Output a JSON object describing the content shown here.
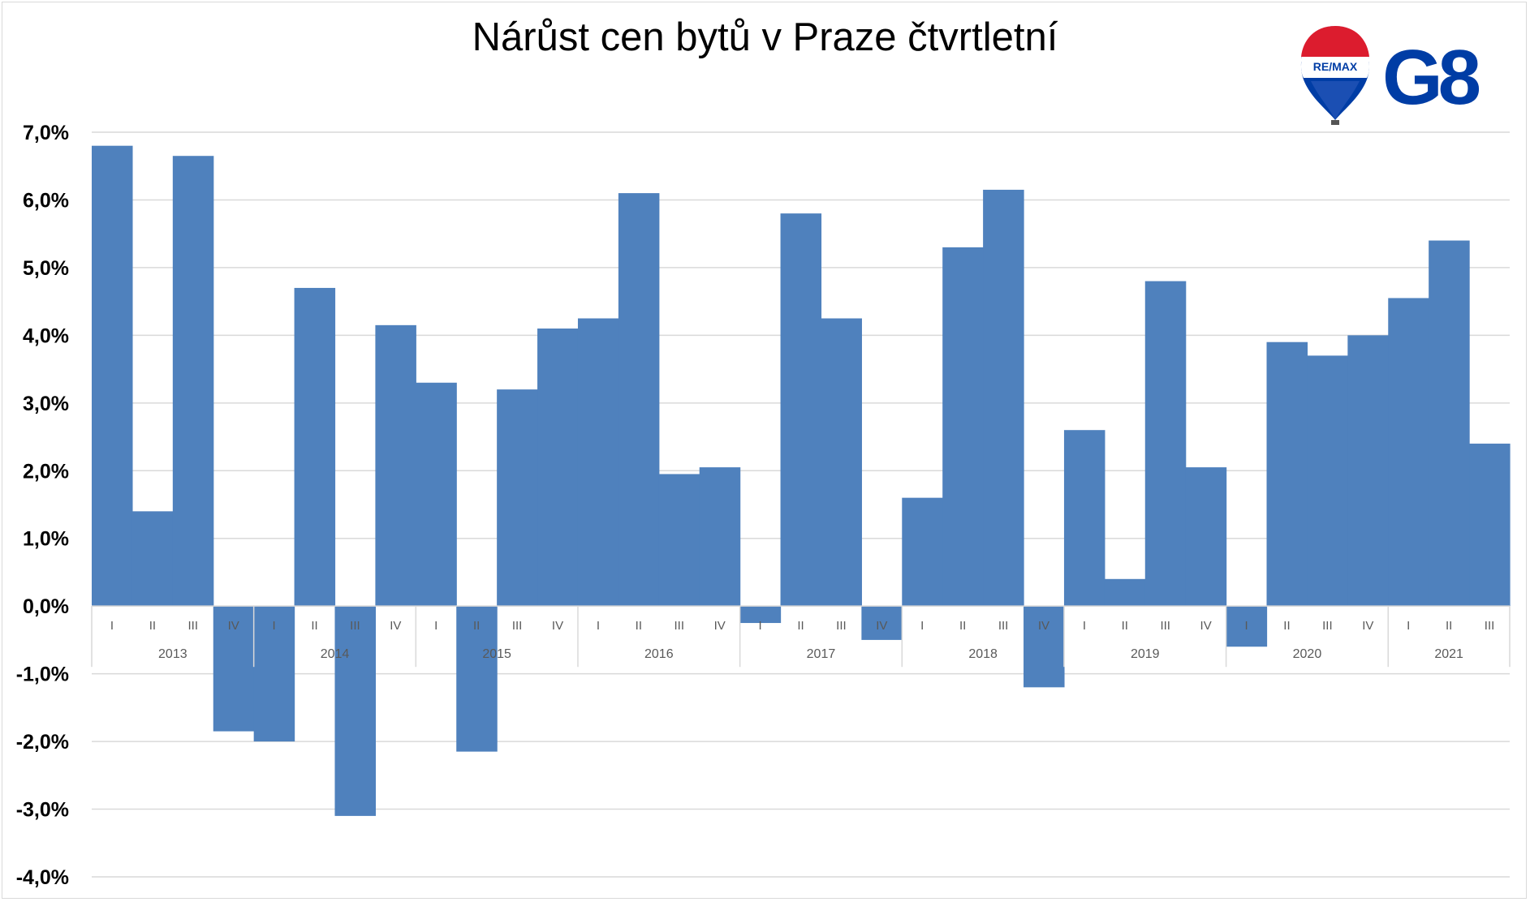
{
  "chart_data": {
    "type": "bar",
    "title": "Nárůst cen bytů v Praze čtvrtletní",
    "xlabel": "",
    "ylabel": "",
    "ylim": [
      -4.0,
      7.0
    ],
    "y_ticks": [
      "7,0%",
      "6,0%",
      "5,0%",
      "4,0%",
      "3,0%",
      "2,0%",
      "1,0%",
      "0,0%",
      "-1,0%",
      "-2,0%",
      "-3,0%",
      "-4,0%"
    ],
    "y_tick_values": [
      7,
      6,
      5,
      4,
      3,
      2,
      1,
      0,
      -1,
      -2,
      -3,
      -4
    ],
    "grid": true,
    "legend": "none",
    "bar_color": "#4f81bd",
    "categories": [
      "I",
      "II",
      "III",
      "IV",
      "I",
      "II",
      "III",
      "IV",
      "I",
      "II",
      "III",
      "IV",
      "I",
      "II",
      "III",
      "IV",
      "I",
      "II",
      "III",
      "IV",
      "I",
      "II",
      "III",
      "IV",
      "I",
      "II",
      "III",
      "IV",
      "I",
      "II",
      "III",
      "IV",
      "I",
      "II",
      "III"
    ],
    "years": [
      {
        "label": "2013",
        "count": 4
      },
      {
        "label": "2014",
        "count": 4
      },
      {
        "label": "2015",
        "count": 4
      },
      {
        "label": "2016",
        "count": 4
      },
      {
        "label": "2017",
        "count": 4
      },
      {
        "label": "2018",
        "count": 4
      },
      {
        "label": "2019",
        "count": 4
      },
      {
        "label": "2020",
        "count": 4
      },
      {
        "label": "2021",
        "count": 3
      }
    ],
    "values": [
      6.8,
      1.4,
      6.65,
      -1.85,
      -2.0,
      4.7,
      -3.1,
      4.15,
      3.3,
      -2.15,
      3.2,
      4.1,
      4.25,
      6.1,
      1.95,
      2.05,
      -0.25,
      5.8,
      4.25,
      -0.5,
      1.6,
      5.3,
      6.15,
      -1.2,
      2.6,
      0.4,
      4.8,
      2.05,
      -0.6,
      3.9,
      3.7,
      4.0,
      4.55,
      5.4,
      2.4
    ]
  },
  "logo": {
    "balloon_text": "RE/MAX",
    "wordmark": "G8",
    "brand_red": "#dc1c2e",
    "brand_blue": "#003da5"
  }
}
